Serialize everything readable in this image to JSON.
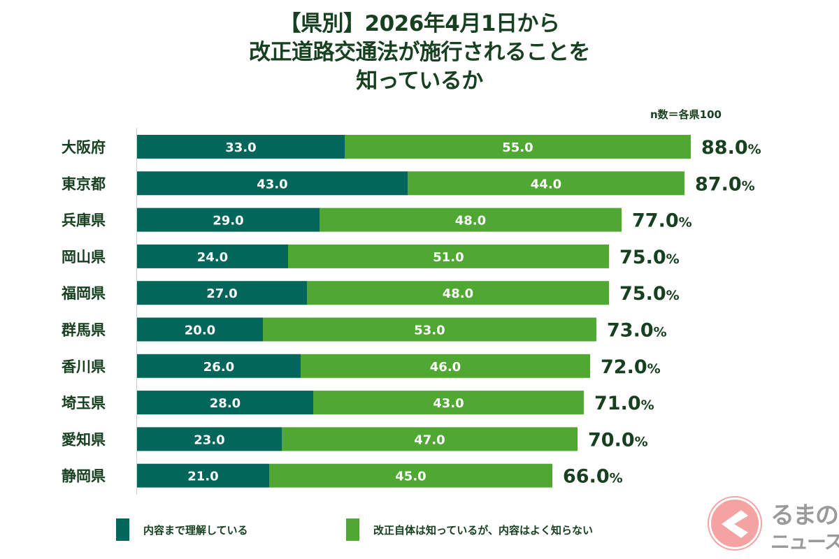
{
  "title_lines": [
    "【県別】2026年4月1日から",
    "改正道路交通法が施行されることを",
    "知っているか"
  ],
  "note": "n数＝各県100",
  "chart_data": {
    "type": "bar",
    "orientation": "horizontal",
    "stacked": true,
    "title": "【県別】2026年4月1日から改正道路交通法が施行されることを知っているか",
    "subtitle": "n数＝各県100",
    "xlabel": "",
    "ylabel": "",
    "xlim": [
      0,
      100
    ],
    "grid": false,
    "legend_position": "bottom",
    "categories": [
      "大阪府",
      "東京都",
      "兵庫県",
      "岡山県",
      "福岡県",
      "群馬県",
      "香川県",
      "埼玉県",
      "愛知県",
      "静岡県"
    ],
    "series": [
      {
        "name": "内容まで理解している",
        "color": "#03665a",
        "values": [
          33.0,
          43.0,
          29.0,
          24.0,
          27.0,
          20.0,
          26.0,
          28.0,
          23.0,
          21.0
        ]
      },
      {
        "name": "改正自体は知っているが、内容はよく知らない",
        "color": "#4fa832",
        "values": [
          55.0,
          44.0,
          48.0,
          51.0,
          48.0,
          53.0,
          46.0,
          43.0,
          47.0,
          45.0
        ]
      }
    ],
    "segment_labels": [
      [
        "33.0",
        "43.0",
        "29.0",
        "24.0",
        "27.0",
        "20.0",
        "26.0",
        "28.0",
        "23.0",
        "21.0"
      ],
      [
        "55.0",
        "44.0",
        "48.0",
        "51.0",
        "48.0",
        "53.0",
        "46.0",
        "43.0",
        "47.0",
        "45.0"
      ]
    ],
    "totals": [
      88.0,
      87.0,
      77.0,
      75.0,
      75.0,
      73.0,
      72.0,
      71.0,
      70.0,
      66.0
    ],
    "total_labels": [
      "88.0",
      "87.0",
      "77.0",
      "75.0",
      "75.0",
      "73.0",
      "72.0",
      "71.0",
      "70.0",
      "66.0"
    ],
    "total_unit": "%"
  },
  "legend": [
    {
      "label": "内容まで理解している",
      "color": "#03665a"
    },
    {
      "label": "改正自体は知っているが、内容はよく知らない",
      "color": "#4fa832"
    }
  ],
  "logo": {
    "line1": "るまの",
    "line2": "ニュース",
    "circle_color": "#f4a3a3",
    "text_color": "#9a9a9a"
  }
}
